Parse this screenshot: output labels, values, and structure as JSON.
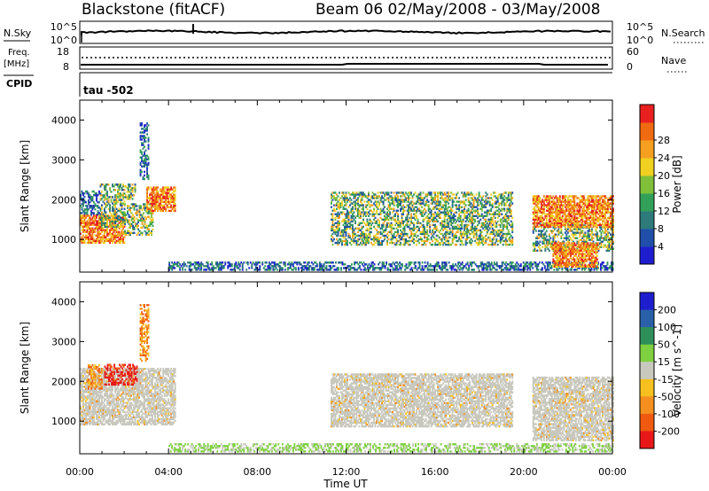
{
  "header": {
    "station": "Blackstone (fitACF)",
    "beam_dates": "Beam 06  02/May/2008 - 03/May/2008"
  },
  "status": {
    "nsky_label": "N.Sky",
    "nsky_ticks": [
      "10^5",
      "10^0"
    ],
    "nsearch_label": "N.Search",
    "nsearch_ticks": [
      "10^5",
      "10^0"
    ],
    "freq_label": "Freq.",
    "freq_unit": "[MHz]",
    "freq_ticks": [
      "18",
      "8"
    ],
    "nave_label": "Nave",
    "nave_ticks": [
      "60",
      "0"
    ],
    "cpid_label": "CPID",
    "cpid_value": "tau -502"
  },
  "chart_data": [
    {
      "type": "heatmap",
      "parameter": "Power",
      "ylabel": "Slant Range [km]",
      "xlabel": "Time UT",
      "xlim_hours": [
        0,
        24
      ],
      "ylim_km": [
        180,
        4500
      ],
      "ytick_labels": [
        "1000",
        "2000",
        "3000",
        "4000"
      ],
      "xtick_labels": [
        "00:00",
        "04:00",
        "08:00",
        "12:00",
        "16:00",
        "20:00",
        "00:00"
      ],
      "colorbar": {
        "label": "Power [dB]",
        "tick_labels": [
          "4",
          "8",
          "12",
          "16",
          "20",
          "24",
          "28"
        ],
        "colors": [
          "#1e1ecf",
          "#1f4fa8",
          "#2f7a7a",
          "#33a05a",
          "#7fbf3a",
          "#f0d020",
          "#f5a020",
          "#ef6a10",
          "#e82020"
        ]
      },
      "echo_regions": [
        {
          "t0": 0.0,
          "t1": 0.9,
          "r0": 1600,
          "r1": 2200,
          "level": "low"
        },
        {
          "t0": 0.0,
          "t1": 2.0,
          "r0": 900,
          "r1": 1600,
          "level": "high"
        },
        {
          "t0": 0.9,
          "t1": 2.0,
          "r0": 1300,
          "r1": 2000,
          "level": "mid"
        },
        {
          "t0": 0.9,
          "t1": 2.5,
          "r0": 2000,
          "r1": 2400,
          "level": "mid"
        },
        {
          "t0": 2.0,
          "t1": 3.3,
          "r0": 1100,
          "r1": 1900,
          "level": "mid"
        },
        {
          "t0": 3.0,
          "t1": 4.3,
          "r0": 1700,
          "r1": 2300,
          "level": "high"
        },
        {
          "t0": 2.7,
          "t1": 3.1,
          "r0": 2500,
          "r1": 3900,
          "level": "low"
        },
        {
          "t0": 4.0,
          "t1": 24.0,
          "r0": 220,
          "r1": 420,
          "level": "low"
        },
        {
          "t0": 11.3,
          "t1": 19.5,
          "r0": 850,
          "r1": 2200,
          "level": "mid"
        },
        {
          "t0": 20.4,
          "t1": 24.0,
          "r0": 700,
          "r1": 1400,
          "level": "mid"
        },
        {
          "t0": 20.4,
          "t1": 24.0,
          "r0": 1300,
          "r1": 2100,
          "level": "high"
        },
        {
          "t0": 21.3,
          "t1": 23.3,
          "r0": 300,
          "r1": 900,
          "level": "high"
        }
      ]
    },
    {
      "type": "heatmap",
      "parameter": "Velocity",
      "ylabel": "Slant Range [km]",
      "xlabel": "Time UT",
      "xlim_hours": [
        0,
        24
      ],
      "ylim_km": [
        180,
        4500
      ],
      "ytick_labels": [
        "1000",
        "2000",
        "3000",
        "4000"
      ],
      "xtick_labels": [
        "00:00",
        "04:00",
        "08:00",
        "12:00",
        "16:00",
        "20:00",
        "00:00"
      ],
      "colorbar": {
        "label": "Velocity [m s^-1]",
        "tick_labels": [
          "200",
          "100",
          "50",
          "15",
          "-15",
          "-50",
          "-100",
          "-200"
        ],
        "colors": [
          "#1e1ecf",
          "#2a60a8",
          "#2f8f5a",
          "#7fd040",
          "#c8c8be",
          "#f5c020",
          "#f59020",
          "#ef5a10",
          "#e81818"
        ]
      },
      "echo_regions": [
        {
          "t0": 0.0,
          "t1": 4.3,
          "r0": 900,
          "r1": 2300,
          "level": "ground"
        },
        {
          "t0": 1.1,
          "t1": 2.6,
          "r0": 1900,
          "r1": 2400,
          "level": "neg-strong"
        },
        {
          "t0": 0.3,
          "t1": 1.0,
          "r0": 1800,
          "r1": 2400,
          "level": "neg"
        },
        {
          "t0": 2.7,
          "t1": 3.1,
          "r0": 2500,
          "r1": 3900,
          "level": "neg"
        },
        {
          "t0": 4.0,
          "t1": 24.0,
          "r0": 220,
          "r1": 420,
          "level": "pos-weak"
        },
        {
          "t0": 11.3,
          "t1": 19.5,
          "r0": 850,
          "r1": 2200,
          "level": "ground"
        },
        {
          "t0": 20.4,
          "t1": 24.0,
          "r0": 500,
          "r1": 2100,
          "level": "ground"
        }
      ]
    }
  ]
}
